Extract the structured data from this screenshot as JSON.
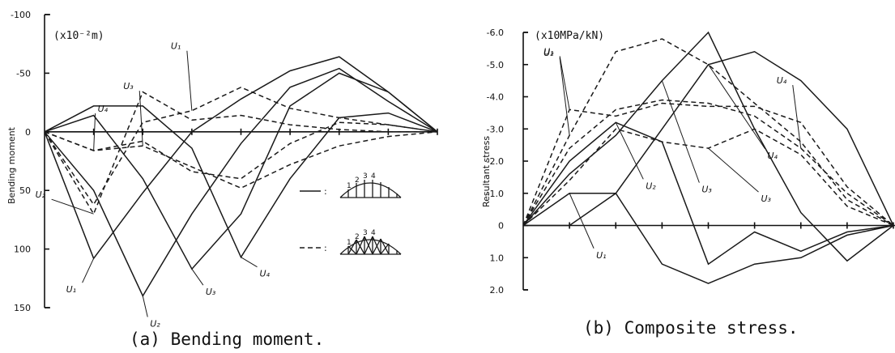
{
  "chart_data": [
    {
      "type": "line",
      "caption": "(a) Bending moment.",
      "ylabel": "Bending moment",
      "unit": "(x10⁻²m)",
      "yticks": [
        "-100",
        "-50",
        "0",
        "50",
        "100",
        "150"
      ],
      "ylim": [
        -100,
        150
      ],
      "y_inverted": true,
      "x": [
        0,
        1,
        2,
        3,
        4,
        5,
        6,
        7,
        8
      ],
      "legend": [
        {
          "style": "solid",
          "label": ":",
          "icon": "vertical-member-arch-icon",
          "numbers": [
            "1",
            "2",
            "3",
            "4"
          ]
        },
        {
          "style": "dashed",
          "label": ":",
          "icon": "truss-arch-icon",
          "numbers": [
            "1",
            "2",
            "3",
            "4"
          ]
        }
      ],
      "series": [
        {
          "name": "U₁",
          "style": "solid",
          "values": [
            0,
            108,
            52,
            0,
            -28,
            -52,
            -64,
            -34,
            0
          ]
        },
        {
          "name": "U₂",
          "style": "solid",
          "values": [
            0,
            50,
            140,
            70,
            10,
            -38,
            -54,
            -26,
            0
          ]
        },
        {
          "name": "U₃",
          "style": "solid",
          "values": [
            0,
            -14,
            40,
            117,
            70,
            -22,
            -50,
            -34,
            0
          ]
        },
        {
          "name": "U₄",
          "style": "solid",
          "values": [
            0,
            -22,
            -22,
            14,
            107,
            40,
            -12,
            -16,
            0
          ]
        },
        {
          "name": "U₁",
          "style": "dashed",
          "values": [
            0,
            62,
            -8,
            -18,
            -38,
            -20,
            -12,
            -6,
            0
          ]
        },
        {
          "name": "U₂",
          "style": "dashed",
          "values": [
            0,
            70,
            -34,
            -10,
            -14,
            -6,
            -2,
            0,
            0
          ]
        },
        {
          "name": "U₃",
          "style": "dashed",
          "values": [
            0,
            16,
            12,
            30,
            48,
            28,
            12,
            4,
            0
          ]
        },
        {
          "name": "U₄",
          "style": "dashed",
          "values": [
            0,
            16,
            8,
            34,
            40,
            10,
            -8,
            -6,
            0
          ]
        }
      ]
    },
    {
      "type": "line",
      "caption": "(b) Composite stress.",
      "ylabel": "Resultant stress",
      "unit": "(x10MPa/kN)",
      "yticks": [
        "-6.0",
        "-5.0",
        "-4.0",
        "-3.0",
        "-2.0",
        "-1.0",
        "0",
        "1.0",
        "2.0"
      ],
      "ylim": [
        -6.0,
        2.0
      ],
      "y_inverted": true,
      "x": [
        0,
        1,
        2,
        3,
        4,
        5,
        6,
        7,
        8
      ],
      "series": [
        {
          "name": "U₁",
          "style": "solid",
          "values": [
            0,
            -1.0,
            -1.0,
            1.2,
            1.8,
            1.2,
            1.0,
            0.3,
            0
          ]
        },
        {
          "name": "U₂",
          "style": "solid",
          "values": [
            0,
            -2.0,
            -3.2,
            -2.6,
            1.2,
            0.2,
            0.8,
            0.2,
            0
          ]
        },
        {
          "name": "U₃",
          "style": "solid",
          "values": [
            0,
            -1.6,
            -2.8,
            -4.5,
            -6.0,
            -3.0,
            -0.4,
            1.1,
            0
          ]
        },
        {
          "name": "U₄",
          "style": "solid",
          "values": [
            0,
            0.0,
            -1.0,
            -3.0,
            -5.0,
            -5.4,
            -4.5,
            -3.0,
            0
          ]
        },
        {
          "name": "U₁",
          "style": "dashed",
          "values": [
            0,
            -3.6,
            -3.4,
            -3.8,
            -3.7,
            -3.7,
            -3.2,
            -1.2,
            0
          ]
        },
        {
          "name": "U₂",
          "style": "dashed",
          "values": [
            0,
            -2.8,
            -5.4,
            -5.8,
            -5.0,
            -3.8,
            -2.6,
            -0.8,
            0
          ]
        },
        {
          "name": "U₃",
          "style": "dashed",
          "values": [
            0,
            -1.4,
            -3.0,
            -2.6,
            -2.4,
            -3.0,
            -2.2,
            -0.6,
            0
          ]
        },
        {
          "name": "U₄",
          "style": "dashed",
          "values": [
            0,
            -2.4,
            -3.6,
            -3.9,
            -3.8,
            -3.4,
            -2.4,
            -1.0,
            0
          ]
        }
      ]
    }
  ]
}
